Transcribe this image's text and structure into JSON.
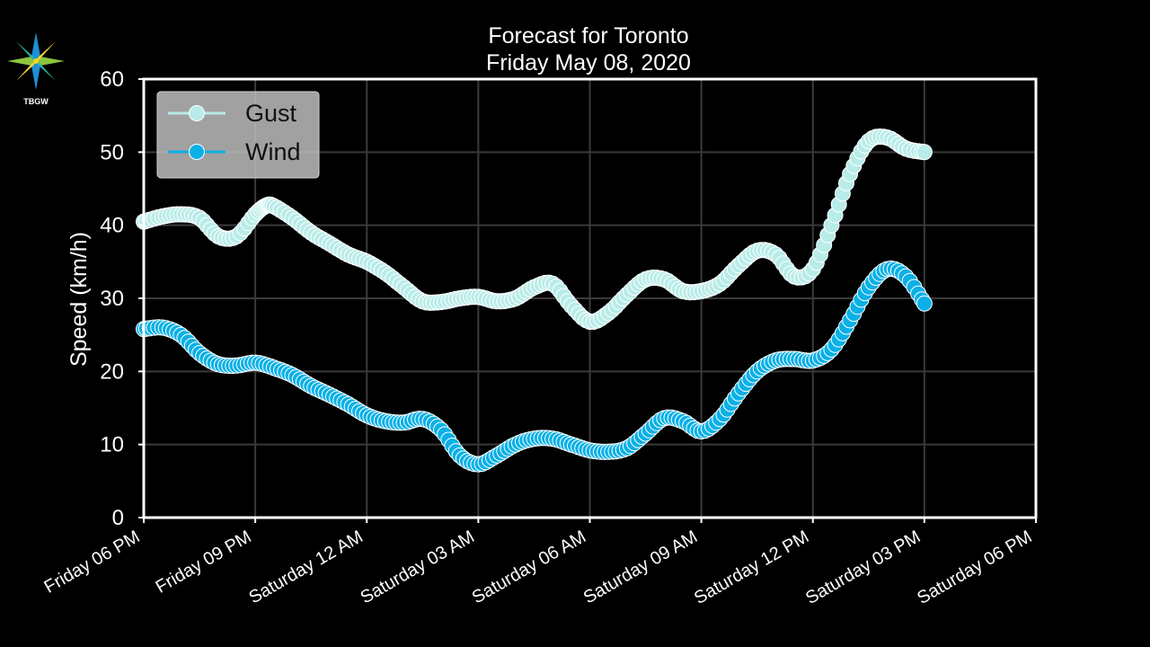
{
  "logo": {
    "text": "TBGW",
    "name": "tbgw-compass-logo"
  },
  "chart_data": {
    "type": "line",
    "title": "Forecast for Toronto",
    "subtitle": "Friday May 08, 2020",
    "ylabel": "Speed (km/h)",
    "xlabel": "",
    "x_unit": "hours from Friday 06 PM",
    "xlim": [
      0,
      24
    ],
    "ylim": [
      0,
      60
    ],
    "grid": true,
    "legend_position": "top-left",
    "x_ticks": [
      {
        "value": 0,
        "label": "Friday 06 PM"
      },
      {
        "value": 3,
        "label": "Friday 09 PM"
      },
      {
        "value": 6,
        "label": "Saturday 12 AM"
      },
      {
        "value": 9,
        "label": "Saturday 03 AM"
      },
      {
        "value": 12,
        "label": "Saturday 06 AM"
      },
      {
        "value": 15,
        "label": "Saturday 09 AM"
      },
      {
        "value": 18,
        "label": "Saturday 12 PM"
      },
      {
        "value": 21,
        "label": "Saturday 03 PM"
      },
      {
        "value": 24,
        "label": "Saturday 06 PM"
      }
    ],
    "y_ticks": [
      0,
      10,
      20,
      30,
      40,
      50,
      60
    ],
    "series": [
      {
        "name": "Gust",
        "color": "#b8ece8",
        "points": [
          [
            0,
            40.5
          ],
          [
            0.5,
            41.2
          ],
          [
            1,
            41.5
          ],
          [
            1.5,
            41
          ],
          [
            2,
            38.5
          ],
          [
            2.5,
            38.5
          ],
          [
            3,
            41.5
          ],
          [
            3.3,
            42.7
          ],
          [
            3.5,
            42.6
          ],
          [
            4,
            41
          ],
          [
            4.5,
            39
          ],
          [
            5,
            37.5
          ],
          [
            5.5,
            36
          ],
          [
            6,
            35
          ],
          [
            6.5,
            33.5
          ],
          [
            7,
            31.5
          ],
          [
            7.5,
            29.6
          ],
          [
            8,
            29.5
          ],
          [
            8.5,
            30
          ],
          [
            9,
            30.2
          ],
          [
            9.5,
            29.6
          ],
          [
            10,
            30
          ],
          [
            10.5,
            31.5
          ],
          [
            11,
            32
          ],
          [
            11.5,
            29
          ],
          [
            12,
            26.8
          ],
          [
            12.5,
            28
          ],
          [
            13,
            30.5
          ],
          [
            13.5,
            32.6
          ],
          [
            14,
            32.6
          ],
          [
            14.5,
            31
          ],
          [
            15,
            31
          ],
          [
            15.5,
            32
          ],
          [
            16,
            34.5
          ],
          [
            16.5,
            36.5
          ],
          [
            17,
            36
          ],
          [
            17.5,
            33
          ],
          [
            18,
            34
          ],
          [
            18.5,
            40
          ],
          [
            19,
            47
          ],
          [
            19.5,
            51.5
          ],
          [
            20,
            52
          ],
          [
            20.5,
            50.5
          ],
          [
            21,
            50
          ]
        ]
      },
      {
        "name": "Wind",
        "color": "#0ab0e6",
        "points": [
          [
            0,
            25.8
          ],
          [
            0.5,
            26
          ],
          [
            1,
            25
          ],
          [
            1.5,
            22.5
          ],
          [
            2,
            21
          ],
          [
            2.5,
            20.8
          ],
          [
            3,
            21.2
          ],
          [
            3.5,
            20.5
          ],
          [
            4,
            19.5
          ],
          [
            4.5,
            18
          ],
          [
            5,
            16.8
          ],
          [
            5.5,
            15.5
          ],
          [
            6,
            14
          ],
          [
            6.5,
            13.2
          ],
          [
            7,
            13
          ],
          [
            7.5,
            13.5
          ],
          [
            8,
            12
          ],
          [
            8.5,
            8.5
          ],
          [
            9,
            7.3
          ],
          [
            9.5,
            8.5
          ],
          [
            10,
            10
          ],
          [
            10.5,
            10.8
          ],
          [
            11,
            10.8
          ],
          [
            11.5,
            10
          ],
          [
            12,
            9.2
          ],
          [
            12.5,
            9
          ],
          [
            13,
            9.5
          ],
          [
            13.5,
            11.5
          ],
          [
            14,
            13.6
          ],
          [
            14.5,
            13.2
          ],
          [
            15,
            11.8
          ],
          [
            15.5,
            13.5
          ],
          [
            16,
            17
          ],
          [
            16.5,
            20
          ],
          [
            17,
            21.5
          ],
          [
            17.5,
            21.7
          ],
          [
            18,
            21.5
          ],
          [
            18.5,
            23
          ],
          [
            19,
            27
          ],
          [
            19.5,
            31.5
          ],
          [
            20,
            34
          ],
          [
            20.5,
            33
          ],
          [
            21,
            29.3
          ]
        ]
      }
    ]
  }
}
